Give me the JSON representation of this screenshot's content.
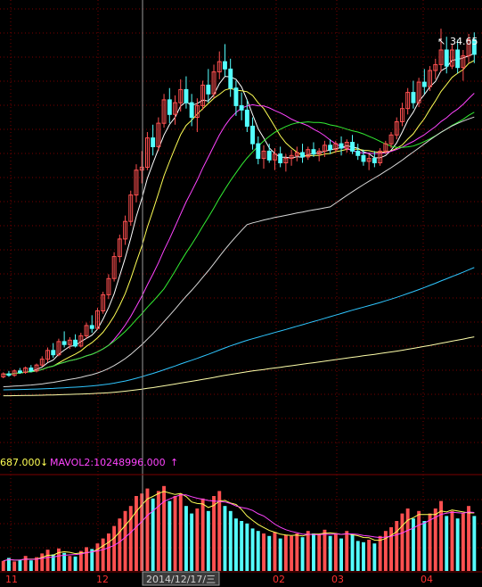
{
  "colors": {
    "background": "#000000",
    "up_candle": "#ff5050",
    "down_candle": "#54ffff",
    "grid": "#7a0000",
    "axis_text": "#ff3030",
    "ma5": "#ffffff",
    "ma10": "#ffff55",
    "ma20": "#ff44ff",
    "ma30": "#33ee33",
    "ma60": "#d8d8d8",
    "ma120": "#2fc6ff",
    "ma250": "#ffffaa",
    "vol_up": "#ff5050",
    "vol_down": "#54ffff",
    "crosshair": "#9a9a9a",
    "status_yellow": "#ffff55",
    "status_magenta": "#ff44ff"
  },
  "volume_status": {
    "mavol1_value": "687.000",
    "mavol1_arrow": "↓",
    "mavol2_text": "MAVOL2:10248996.000",
    "mavol2_arrow": "↑"
  },
  "crosshair_date_label": "2014/12/17/三",
  "annotations": {
    "max_price_label": "34.65"
  },
  "chart_data": [
    {
      "type": "candlestick",
      "title": "",
      "x_tick_labels": [
        "11",
        "12",
        "02",
        "03",
        "04"
      ],
      "price_max_marker": 34.65,
      "moving_averages": [
        "MA5",
        "MA10",
        "MA20",
        "MA30",
        "MA60",
        "MA120",
        "MA250"
      ],
      "grid": true,
      "candles_ohlc": [
        [
          10.9,
          11.2,
          10.8,
          11.1
        ],
        [
          11.1,
          11.3,
          10.9,
          11.0
        ],
        [
          11.0,
          11.4,
          10.9,
          11.3
        ],
        [
          11.3,
          11.5,
          11.1,
          11.2
        ],
        [
          11.2,
          11.6,
          11.1,
          11.5
        ],
        [
          11.5,
          11.7,
          11.2,
          11.3
        ],
        [
          11.3,
          11.8,
          11.2,
          11.7
        ],
        [
          11.7,
          12.3,
          11.6,
          12.1
        ],
        [
          12.1,
          12.9,
          11.9,
          12.7
        ],
        [
          12.7,
          13.2,
          12.2,
          12.4
        ],
        [
          12.4,
          13.5,
          12.3,
          13.3
        ],
        [
          13.3,
          14.0,
          12.9,
          13.1
        ],
        [
          13.1,
          13.6,
          12.8,
          13.4
        ],
        [
          13.4,
          13.8,
          12.9,
          13.0
        ],
        [
          13.0,
          13.9,
          12.9,
          13.7
        ],
        [
          13.7,
          14.6,
          13.5,
          14.4
        ],
        [
          14.4,
          15.1,
          13.9,
          14.2
        ],
        [
          14.2,
          15.6,
          14.1,
          15.4
        ],
        [
          15.4,
          16.7,
          15.2,
          16.5
        ],
        [
          16.5,
          17.9,
          16.2,
          17.6
        ],
        [
          17.6,
          19.4,
          17.4,
          19.1
        ],
        [
          19.1,
          20.6,
          18.7,
          20.3
        ],
        [
          20.3,
          21.9,
          19.9,
          21.5
        ],
        [
          21.5,
          23.6,
          21.2,
          23.3
        ],
        [
          23.3,
          25.4,
          22.8,
          25.0
        ],
        [
          25.0,
          26.3,
          24.1,
          25.2
        ],
        [
          25.2,
          27.6,
          25.0,
          27.2
        ],
        [
          27.2,
          28.1,
          26.0,
          26.6
        ],
        [
          26.6,
          28.6,
          26.3,
          28.2
        ],
        [
          28.2,
          30.2,
          27.9,
          29.8
        ],
        [
          29.8,
          30.6,
          28.2,
          28.8
        ],
        [
          28.8,
          30.1,
          28.1,
          29.6
        ],
        [
          29.6,
          31.2,
          29.0,
          30.5
        ],
        [
          30.5,
          31.4,
          29.2,
          29.6
        ],
        [
          29.6,
          30.2,
          28.0,
          28.6
        ],
        [
          28.6,
          29.9,
          27.6,
          29.4
        ],
        [
          29.4,
          31.1,
          29.1,
          30.8
        ],
        [
          30.8,
          31.9,
          29.6,
          30.2
        ],
        [
          30.2,
          32.2,
          29.9,
          31.7
        ],
        [
          31.7,
          33.1,
          31.2,
          32.4
        ],
        [
          32.4,
          33.6,
          31.4,
          31.9
        ],
        [
          31.9,
          32.6,
          30.0,
          30.6
        ],
        [
          30.6,
          31.1,
          28.7,
          29.4
        ],
        [
          29.4,
          30.3,
          28.4,
          29.1
        ],
        [
          29.1,
          29.8,
          27.6,
          28.0
        ],
        [
          28.0,
          28.6,
          26.4,
          26.8
        ],
        [
          26.8,
          27.3,
          25.4,
          25.8
        ],
        [
          25.8,
          26.7,
          25.1,
          26.3
        ],
        [
          26.3,
          26.8,
          25.5,
          25.7
        ],
        [
          25.7,
          26.5,
          25.0,
          26.1
        ],
        [
          26.1,
          26.6,
          25.2,
          25.5
        ],
        [
          25.5,
          26.1,
          24.9,
          25.8
        ],
        [
          25.8,
          26.4,
          25.3,
          26.0
        ],
        [
          26.0,
          26.6,
          25.6,
          26.2
        ],
        [
          26.2,
          26.8,
          25.5,
          25.9
        ],
        [
          25.9,
          26.6,
          25.7,
          26.4
        ],
        [
          26.4,
          26.9,
          25.9,
          26.1
        ],
        [
          26.1,
          26.5,
          25.6,
          26.3
        ],
        [
          26.3,
          27.0,
          25.9,
          26.7
        ],
        [
          26.7,
          27.1,
          26.1,
          26.4
        ],
        [
          26.4,
          27.0,
          26.2,
          26.8
        ],
        [
          26.8,
          27.3,
          26.0,
          26.5
        ],
        [
          26.5,
          27.1,
          26.2,
          26.9
        ],
        [
          26.9,
          27.4,
          26.1,
          26.3
        ],
        [
          26.3,
          26.8,
          25.7,
          26.0
        ],
        [
          26.0,
          26.4,
          25.3,
          25.6
        ],
        [
          25.6,
          26.1,
          25.0,
          25.8
        ],
        [
          25.8,
          26.3,
          25.2,
          25.5
        ],
        [
          25.5,
          26.5,
          25.3,
          26.3
        ],
        [
          26.3,
          27.0,
          26.1,
          26.8
        ],
        [
          26.8,
          27.6,
          26.5,
          27.4
        ],
        [
          27.4,
          28.6,
          27.1,
          28.3
        ],
        [
          28.3,
          29.6,
          28.0,
          29.2
        ],
        [
          29.2,
          30.6,
          28.8,
          30.3
        ],
        [
          30.3,
          31.1,
          29.2,
          29.6
        ],
        [
          29.6,
          31.3,
          29.3,
          31.0
        ],
        [
          31.0,
          31.9,
          30.2,
          30.7
        ],
        [
          30.7,
          32.1,
          30.4,
          31.8
        ],
        [
          31.8,
          32.6,
          31.2,
          32.2
        ],
        [
          32.2,
          34.65,
          31.7,
          33.2
        ],
        [
          33.2,
          34.1,
          31.6,
          32.1
        ],
        [
          32.1,
          33.6,
          31.9,
          33.2
        ],
        [
          33.2,
          33.9,
          31.6,
          32.0
        ],
        [
          32.0,
          33.2,
          31.1,
          32.8
        ],
        [
          32.8,
          34.3,
          32.3,
          33.9
        ],
        [
          33.9,
          34.4,
          32.3,
          32.9
        ]
      ],
      "volumes": [
        40,
        52,
        38,
        45,
        60,
        42,
        55,
        70,
        85,
        66,
        90,
        72,
        60,
        58,
        80,
        95,
        88,
        110,
        130,
        150,
        180,
        210,
        240,
        260,
        300,
        310,
        330,
        290,
        320,
        340,
        280,
        300,
        310,
        260,
        230,
        250,
        290,
        240,
        300,
        320,
        260,
        240,
        210,
        200,
        190,
        170,
        160,
        150,
        140,
        155,
        130,
        145,
        140,
        150,
        135,
        160,
        150,
        145,
        165,
        140,
        150,
        130,
        160,
        145,
        120,
        115,
        125,
        110,
        140,
        160,
        175,
        200,
        230,
        250,
        210,
        240,
        200,
        230,
        250,
        280,
        220,
        240,
        210,
        230,
        260,
        220
      ]
    }
  ]
}
